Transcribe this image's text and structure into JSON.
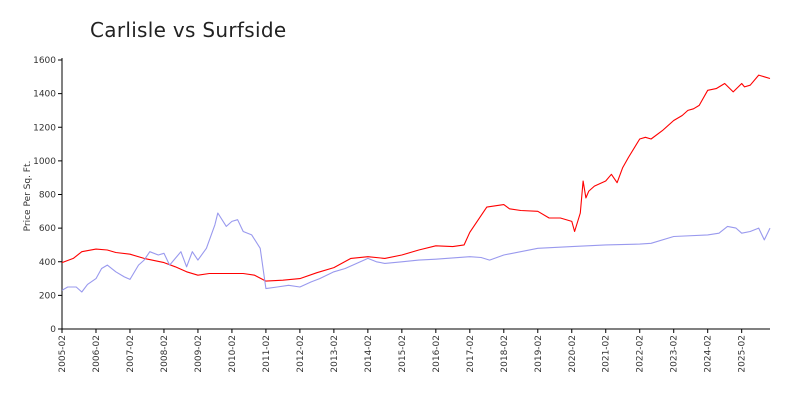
{
  "chart_data": {
    "type": "line",
    "title": "Carlisle vs Surfside",
    "xlabel": "",
    "ylabel": "Price Per Sq. Ft.",
    "ylim": [
      0,
      1600
    ],
    "yticks": [
      0,
      200,
      400,
      600,
      800,
      1000,
      1200,
      1400,
      1600
    ],
    "xticks": [
      "2005-02",
      "2006-02",
      "2007-02",
      "2008-02",
      "2009-02",
      "2010-02",
      "2011-02",
      "2012-02",
      "2013-02",
      "2014-02",
      "2015-02",
      "2016-02",
      "2017-02",
      "2018-02",
      "2019-02",
      "2020-02",
      "2021-02",
      "2022-02",
      "2023-02",
      "2024-02",
      "2025-02"
    ],
    "grid": false,
    "legend": "none",
    "series": [
      {
        "color": "#ff0000",
        "x": [
          "2005-02",
          "2005-06",
          "2005-09",
          "2006-02",
          "2006-06",
          "2006-09",
          "2007-02",
          "2007-07",
          "2008-02",
          "2008-06",
          "2008-10",
          "2009-02",
          "2009-06",
          "2009-10",
          "2010-02",
          "2010-06",
          "2010-10",
          "2011-02",
          "2011-08",
          "2012-02",
          "2012-08",
          "2013-02",
          "2013-08",
          "2014-02",
          "2014-08",
          "2015-02",
          "2015-08",
          "2016-02",
          "2016-08",
          "2016-12",
          "2017-02",
          "2017-08",
          "2018-02",
          "2018-04",
          "2018-08",
          "2019-02",
          "2019-06",
          "2019-10",
          "2020-02",
          "2020-03",
          "2020-05",
          "2020-06",
          "2020-07",
          "2020-08",
          "2020-10",
          "2021-02",
          "2021-04",
          "2021-06",
          "2021-08",
          "2021-10",
          "2022-02",
          "2022-04",
          "2022-06",
          "2022-10",
          "2023-02",
          "2023-05",
          "2023-07",
          "2023-09",
          "2023-11",
          "2024-02",
          "2024-05",
          "2024-08",
          "2024-11",
          "2025-02",
          "2025-03",
          "2025-05",
          "2025-08",
          "2025-10",
          "2025-12"
        ],
        "y": [
          395,
          420,
          460,
          475,
          470,
          455,
          445,
          420,
          395,
          370,
          340,
          320,
          330,
          330,
          330,
          330,
          320,
          285,
          290,
          300,
          335,
          365,
          420,
          430,
          420,
          440,
          470,
          495,
          490,
          500,
          575,
          725,
          740,
          715,
          705,
          700,
          660,
          660,
          640,
          580,
          690,
          880,
          780,
          820,
          850,
          880,
          920,
          870,
          960,
          1020,
          1130,
          1140,
          1130,
          1180,
          1240,
          1270,
          1300,
          1310,
          1330,
          1420,
          1430,
          1460,
          1410,
          1460,
          1440,
          1450,
          1510,
          1500,
          1490
        ]
      },
      {
        "color": "#9999ee",
        "x": [
          "2005-02",
          "2005-04",
          "2005-07",
          "2005-09",
          "2005-11",
          "2006-02",
          "2006-04",
          "2006-06",
          "2006-09",
          "2006-12",
          "2007-02",
          "2007-05",
          "2007-07",
          "2007-09",
          "2007-12",
          "2008-02",
          "2008-04",
          "2008-06",
          "2008-08",
          "2008-10",
          "2008-12",
          "2009-02",
          "2009-05",
          "2009-08",
          "2009-09",
          "2009-12",
          "2010-02",
          "2010-04",
          "2010-06",
          "2010-09",
          "2010-12",
          "2011-02",
          "2011-06",
          "2011-10",
          "2012-02",
          "2012-06",
          "2012-09",
          "2013-02",
          "2013-06",
          "2014-02",
          "2014-05",
          "2014-08",
          "2015-02",
          "2015-08",
          "2016-02",
          "2017-02",
          "2017-06",
          "2017-09",
          "2018-02",
          "2019-02",
          "2020-02",
          "2021-02",
          "2022-02",
          "2022-06",
          "2023-02",
          "2024-02",
          "2024-06",
          "2024-09",
          "2024-12",
          "2025-02",
          "2025-05",
          "2025-08",
          "2025-10",
          "2025-12"
        ],
        "y": [
          230,
          250,
          250,
          220,
          265,
          300,
          360,
          380,
          340,
          310,
          295,
          380,
          410,
          460,
          440,
          450,
          380,
          420,
          460,
          370,
          460,
          410,
          480,
          620,
          690,
          610,
          640,
          650,
          580,
          560,
          480,
          240,
          250,
          260,
          250,
          280,
          300,
          340,
          360,
          420,
          400,
          390,
          400,
          410,
          415,
          430,
          425,
          410,
          440,
          480,
          490,
          500,
          505,
          510,
          550,
          560,
          570,
          610,
          600,
          570,
          580,
          600,
          530,
          600
        ]
      }
    ]
  }
}
